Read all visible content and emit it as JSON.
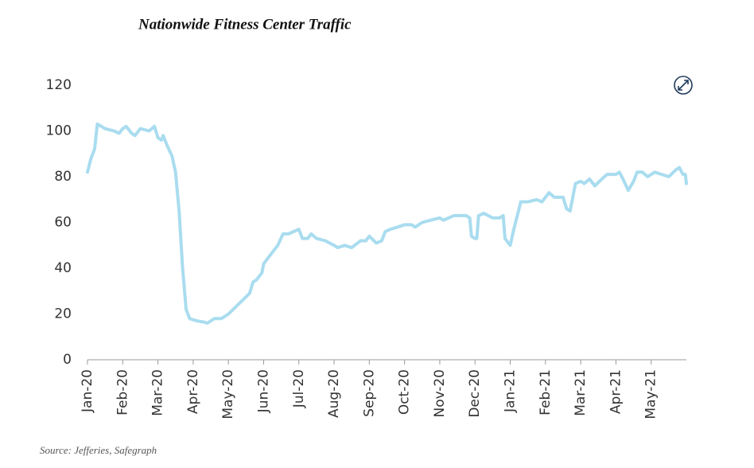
{
  "chart_data": {
    "type": "line",
    "title": "Nationwide Fitness Center Traffic",
    "source": "Source: Jefferies, Safegraph",
    "x": [
      0,
      0.1,
      0.2,
      0.28,
      0.5,
      0.75,
      0.9,
      1.0,
      1.1,
      1.25,
      1.35,
      1.5,
      1.75,
      1.9,
      2.0,
      2.1,
      2.15,
      2.25,
      2.4,
      2.5,
      2.6,
      2.7,
      2.8,
      2.9,
      3.1,
      3.3,
      3.4,
      3.6,
      3.8,
      4.0,
      4.2,
      4.4,
      4.6,
      4.7,
      4.8,
      4.95,
      5.0,
      5.2,
      5.4,
      5.55,
      5.7,
      5.85,
      6.0,
      6.1,
      6.25,
      6.35,
      6.5,
      6.75,
      7.0,
      7.1,
      7.3,
      7.5,
      7.75,
      7.9,
      8.0,
      8.2,
      8.35,
      8.45,
      8.6,
      8.8,
      9.0,
      9.2,
      9.3,
      9.5,
      9.75,
      10.0,
      10.1,
      10.25,
      10.4,
      10.75,
      10.85,
      10.9,
      11.0,
      11.05,
      11.1,
      11.25,
      11.5,
      11.7,
      11.8,
      11.85,
      11.95,
      12.0,
      12.1,
      12.3,
      12.5,
      12.75,
      12.9,
      13.0,
      13.1,
      13.25,
      13.5,
      13.6,
      13.7,
      13.85,
      14.0,
      14.1,
      14.25,
      14.4,
      14.6,
      14.75,
      15.0,
      15.1,
      15.2,
      15.35,
      15.5,
      15.6,
      15.75,
      15.9,
      16.1,
      16.3,
      16.5,
      16.7,
      16.8,
      16.9,
      16.97,
      17.0
    ],
    "series": [
      {
        "name": "Traffic",
        "color": "#a9dcef",
        "values": [
          82,
          88,
          92,
          103,
          101,
          100,
          99,
          101,
          102,
          99,
          98,
          101,
          100,
          102,
          97,
          96,
          98,
          94,
          89,
          82,
          65,
          40,
          22,
          18,
          17,
          16.5,
          16,
          18,
          18,
          20,
          23,
          26,
          29,
          34,
          35,
          38,
          42,
          46,
          50,
          55,
          55,
          56,
          57,
          53,
          53,
          55,
          53,
          52,
          50,
          49,
          50,
          49,
          52,
          52,
          54,
          51,
          52,
          56,
          57,
          58,
          59,
          59,
          58,
          60,
          61,
          62,
          61,
          62,
          63,
          63,
          62,
          54,
          53,
          53,
          63,
          64,
          62,
          62,
          63,
          53,
          51,
          50,
          57,
          69,
          69,
          70,
          69,
          71,
          73,
          71,
          71,
          66,
          65,
          77,
          78,
          77,
          79,
          76,
          79,
          81,
          81,
          82,
          79,
          74,
          78,
          82,
          82,
          80,
          82,
          81,
          80,
          83,
          84,
          81,
          81,
          77
        ]
      }
    ],
    "xlim": [
      0,
      17
    ],
    "xticks": [
      {
        "value": 0,
        "label": "Jan-20"
      },
      {
        "value": 1,
        "label": "Feb-20"
      },
      {
        "value": 2,
        "label": "Mar-20"
      },
      {
        "value": 3,
        "label": "Apr-20"
      },
      {
        "value": 4,
        "label": "May-20"
      },
      {
        "value": 5,
        "label": "Jun-20"
      },
      {
        "value": 6,
        "label": "Jul-20"
      },
      {
        "value": 7,
        "label": "Aug-20"
      },
      {
        "value": 8,
        "label": "Sep-20"
      },
      {
        "value": 9,
        "label": "Oct-20"
      },
      {
        "value": 10,
        "label": "Nov-20"
      },
      {
        "value": 11,
        "label": "Dec-20"
      },
      {
        "value": 12,
        "label": "Jan-21"
      },
      {
        "value": 13,
        "label": "Feb-21"
      },
      {
        "value": 14,
        "label": "Mar-21"
      },
      {
        "value": 15,
        "label": "Apr-21"
      },
      {
        "value": 16,
        "label": "May-21"
      }
    ],
    "ylim": [
      0,
      120
    ],
    "yticks": [
      0,
      20,
      40,
      60,
      80,
      100,
      120
    ],
    "grid": false
  }
}
